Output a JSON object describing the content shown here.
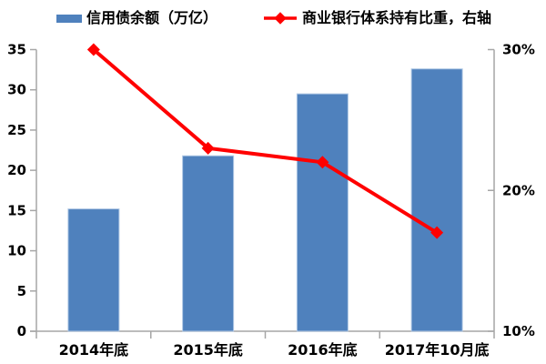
{
  "chart_data": {
    "type": "combo",
    "title": "",
    "categories": [
      "2014年底",
      "2015年底",
      "2016年底",
      "2017年10月底"
    ],
    "series": [
      {
        "name": "信用债余额（万亿）",
        "type": "bar",
        "axis": "left",
        "values": [
          15.2,
          21.8,
          29.5,
          32.6
        ],
        "color": "#4F81BD"
      },
      {
        "name": "商业银行体系持有比重，右轴",
        "type": "line",
        "axis": "right",
        "values": [
          30,
          23,
          22,
          17
        ],
        "color": "#FF0000",
        "marker": "diamond"
      }
    ],
    "left_axis": {
      "min": 0,
      "max": 35,
      "ticks": [
        0,
        5,
        10,
        15,
        20,
        25,
        30,
        35
      ]
    },
    "right_axis": {
      "min": 10,
      "max": 30,
      "ticks": [
        10,
        20,
        30
      ],
      "tick_labels": [
        "10%",
        "20%",
        "30%"
      ]
    },
    "grid": false,
    "legend_position": "top"
  },
  "colors": {
    "bar": "#4F81BD",
    "bar_edge": "#AFC7E4",
    "line": "#FF0000",
    "axis": "#A6A6A6",
    "text": "#000000",
    "background": "#FFFFFF"
  }
}
